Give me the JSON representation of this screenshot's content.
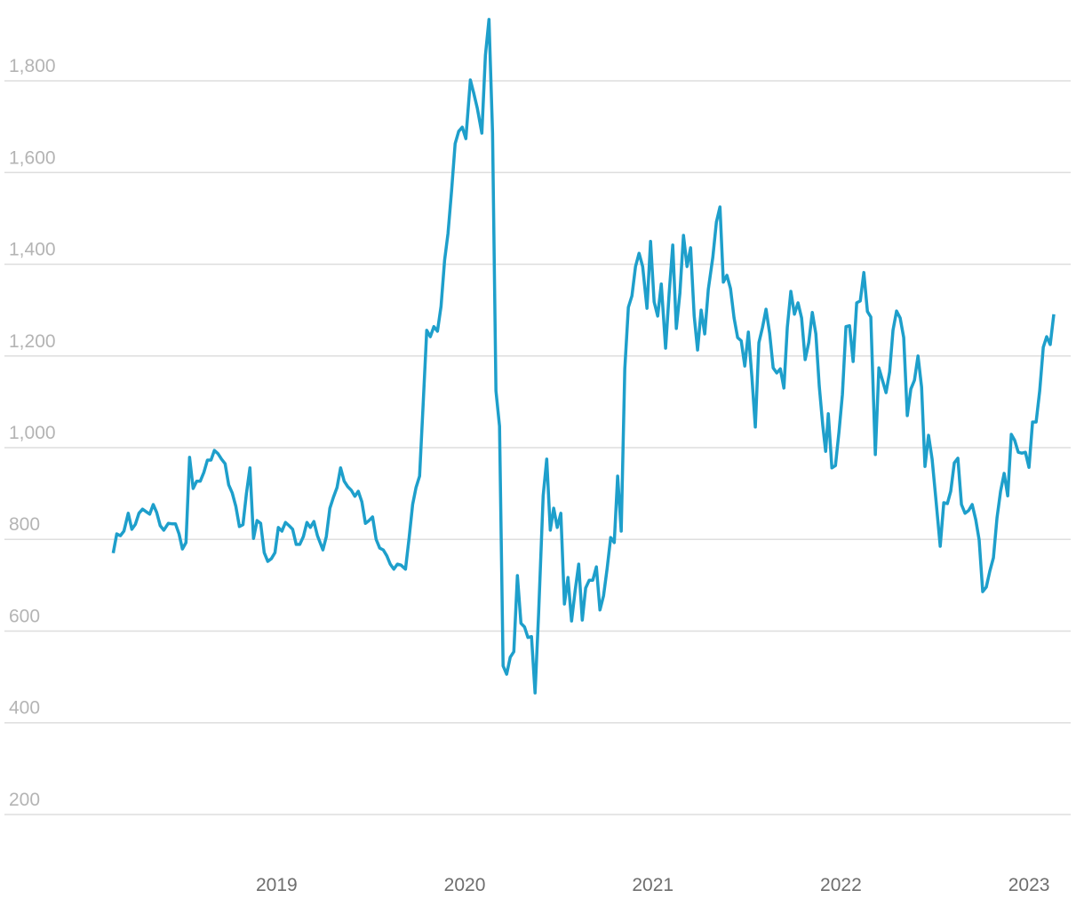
{
  "chart_data": {
    "type": "line",
    "color": "#1e9fcb",
    "grid": true,
    "xlim": [
      2017.6,
      2023.25
    ],
    "ylim": [
      100,
      1950
    ],
    "xticks": [
      2019,
      2020,
      2021,
      2022,
      2023
    ],
    "yticks": [
      200,
      400,
      600,
      800,
      {
        "value": 1000,
        "label": "1,000"
      },
      {
        "value": 1200,
        "label": "1,200"
      },
      {
        "value": 1400,
        "label": "1,400"
      },
      {
        "value": 1600,
        "label": "1,600"
      },
      {
        "value": 1800,
        "label": "1,800"
      }
    ],
    "x": [
      2018.131,
      2018.15,
      2018.169,
      2018.188,
      2018.211,
      2018.23,
      2018.249,
      2018.268,
      2018.287,
      2018.311,
      2018.325,
      2018.344,
      2018.362,
      2018.381,
      2018.4,
      2018.424,
      2018.443,
      2018.462,
      2018.481,
      2018.499,
      2018.518,
      2018.537,
      2018.556,
      2018.575,
      2018.594,
      2018.613,
      2018.632,
      2018.651,
      2018.669,
      2018.688,
      2018.707,
      2018.726,
      2018.745,
      2018.764,
      2018.783,
      2018.802,
      2018.821,
      2018.839,
      2018.858,
      2018.877,
      2018.896,
      2018.915,
      2018.934,
      2018.953,
      2018.972,
      2018.991,
      2019.009,
      2019.028,
      2019.047,
      2019.066,
      2019.085,
      2019.104,
      2019.123,
      2019.142,
      2019.161,
      2019.179,
      2019.198,
      2019.217,
      2019.246,
      2019.264,
      2019.283,
      2019.302,
      2019.321,
      2019.34,
      2019.359,
      2019.378,
      2019.397,
      2019.416,
      2019.434,
      2019.453,
      2019.472,
      2019.491,
      2019.51,
      2019.529,
      2019.548,
      2019.567,
      2019.586,
      2019.604,
      2019.623,
      2019.642,
      2019.661,
      2019.685,
      2019.704,
      2019.723,
      2019.741,
      2019.76,
      2019.779,
      2019.798,
      2019.817,
      2019.836,
      2019.855,
      2019.874,
      2019.893,
      2019.911,
      2019.93,
      2019.949,
      2019.968,
      2019.987,
      2020.006,
      2020.03,
      2020.048,
      2020.067,
      2020.091,
      2020.11,
      2020.129,
      2020.148,
      2020.166,
      2020.185,
      2020.204,
      2020.223,
      2020.242,
      2020.261,
      2020.28,
      2020.299,
      2020.318,
      2020.336,
      2020.355,
      2020.374,
      2020.393,
      2020.417,
      2020.436,
      2020.455,
      2020.473,
      2020.492,
      2020.511,
      2020.53,
      2020.549,
      2020.568,
      2020.587,
      2020.606,
      2020.625,
      2020.643,
      2020.662,
      2020.681,
      2020.7,
      2020.719,
      2020.738,
      2020.757,
      2020.776,
      2020.795,
      2020.813,
      2020.832,
      2020.851,
      2020.87,
      2020.889,
      2020.908,
      2020.927,
      2020.946,
      2020.969,
      2020.988,
      2021.007,
      2021.026,
      2021.045,
      2021.068,
      2021.087,
      2021.106,
      2021.125,
      2021.144,
      2021.163,
      2021.182,
      2021.201,
      2021.22,
      2021.238,
      2021.257,
      2021.276,
      2021.295,
      2021.319,
      2021.338,
      2021.357,
      2021.375,
      2021.394,
      2021.413,
      2021.432,
      2021.451,
      2021.47,
      2021.489,
      2021.508,
      2021.527,
      2021.545,
      2021.564,
      2021.583,
      2021.602,
      2021.621,
      2021.64,
      2021.659,
      2021.678,
      2021.697,
      2021.715,
      2021.734,
      2021.753,
      2021.772,
      2021.791,
      2021.81,
      2021.829,
      2021.848,
      2021.867,
      2021.885,
      2021.904,
      2021.919,
      2021.933,
      2021.952,
      2021.971,
      2021.99,
      2022.008,
      2022.027,
      2022.046,
      2022.065,
      2022.084,
      2022.103,
      2022.122,
      2022.141,
      2022.159,
      2022.183,
      2022.202,
      2022.221,
      2022.24,
      2022.259,
      2022.277,
      2022.296,
      2022.315,
      2022.334,
      2022.353,
      2022.372,
      2022.391,
      2022.41,
      2022.429,
      2022.447,
      2022.466,
      2022.485,
      2022.504,
      2022.528,
      2022.547,
      2022.566,
      2022.584,
      2022.603,
      2022.622,
      2022.641,
      2022.66,
      2022.679,
      2022.698,
      2022.717,
      2022.735,
      2022.754,
      2022.773,
      2022.792,
      2022.811,
      2022.83,
      2022.849,
      2022.868,
      2022.887,
      2022.906,
      2022.924,
      2022.943,
      2022.962,
      2022.981,
      2023.0,
      2023.019,
      2023.038,
      2023.057,
      2023.076,
      2023.094,
      2023.113,
      2023.132
    ],
    "values": [
      770,
      812,
      808,
      818,
      857,
      822,
      833,
      857,
      866,
      859,
      855,
      876,
      859,
      830,
      820,
      835,
      834,
      834,
      812,
      779,
      793,
      979,
      911,
      927,
      927,
      946,
      973,
      973,
      994,
      987,
      975,
      965,
      919,
      901,
      872,
      828,
      832,
      899,
      956,
      802,
      841,
      835,
      771,
      752,
      758,
      771,
      826,
      818,
      837,
      830,
      822,
      789,
      789,
      806,
      837,
      826,
      839,
      808,
      777,
      806,
      868,
      892,
      913,
      956,
      927,
      915,
      907,
      894,
      905,
      882,
      835,
      841,
      849,
      800,
      781,
      777,
      764,
      746,
      735,
      746,
      744,
      735,
      802,
      876,
      913,
      938,
      1095,
      1256,
      1242,
      1264,
      1254,
      1308,
      1409,
      1467,
      1560,
      1663,
      1690,
      1699,
      1674,
      1802,
      1773,
      1740,
      1686,
      1856,
      1934,
      1686,
      1124,
      1047,
      524,
      506,
      543,
      555,
      721,
      617,
      609,
      586,
      588,
      465,
      640,
      895,
      975,
      820,
      868,
      826,
      857,
      659,
      717,
      622,
      688,
      746,
      624,
      694,
      711,
      711,
      740,
      646,
      677,
      736,
      804,
      793,
      938,
      818,
      1172,
      1306,
      1331,
      1395,
      1424,
      1395,
      1304,
      1450,
      1318,
      1287,
      1357,
      1217,
      1337,
      1442,
      1260,
      1337,
      1463,
      1395,
      1436,
      1287,
      1213,
      1300,
      1248,
      1345,
      1415,
      1492,
      1525,
      1361,
      1376,
      1347,
      1283,
      1240,
      1233,
      1178,
      1252,
      1153,
      1045,
      1229,
      1262,
      1302,
      1250,
      1174,
      1163,
      1172,
      1130,
      1262,
      1341,
      1291,
      1316,
      1283,
      1192,
      1229,
      1295,
      1248,
      1134,
      1047,
      992,
      1074,
      956,
      961,
      1035,
      1116,
      1264,
      1266,
      1188,
      1316,
      1320,
      1382,
      1297,
      1285,
      985,
      1174,
      1147,
      1120,
      1165,
      1256,
      1298,
      1283,
      1240,
      1070,
      1128,
      1147,
      1200,
      1132,
      959,
      1027,
      975,
      892,
      785,
      880,
      878,
      905,
      967,
      977,
      876,
      857,
      863,
      876,
      843,
      799,
      686,
      696,
      731,
      760,
      847,
      905,
      944,
      895,
      1029,
      1016,
      990,
      988,
      990,
      957,
      1056,
      1056,
      1124,
      1219,
      1242,
      1225,
      1291
    ]
  }
}
